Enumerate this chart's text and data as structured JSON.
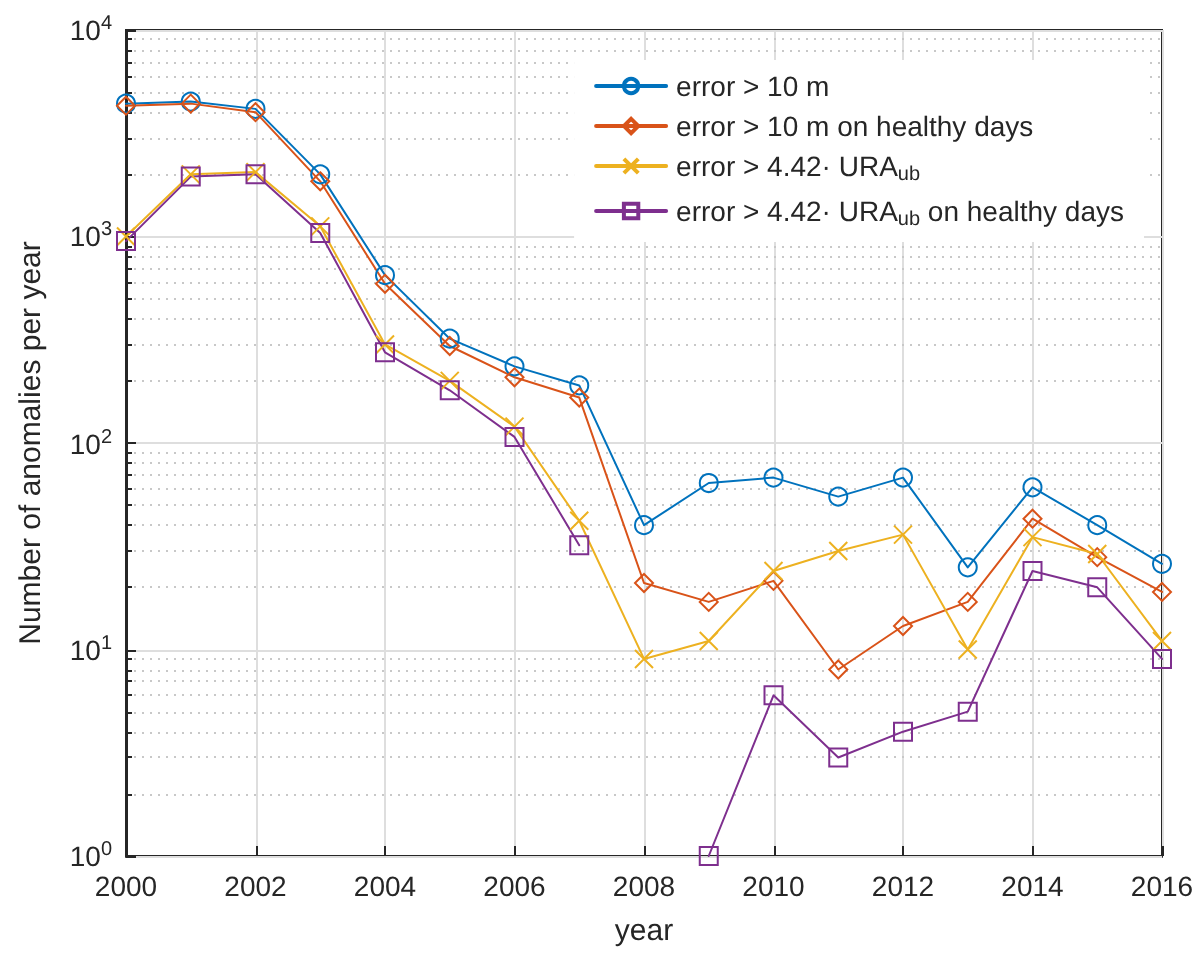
{
  "chart_data": {
    "type": "line",
    "xlabel": "year",
    "ylabel": "Number of anomalies per year",
    "x": [
      2000,
      2001,
      2002,
      2003,
      2004,
      2005,
      2006,
      2007,
      2008,
      2009,
      2010,
      2011,
      2012,
      2013,
      2014,
      2015,
      2016
    ],
    "xlim": [
      2000,
      2016
    ],
    "xticks": [
      2000,
      2002,
      2004,
      2006,
      2008,
      2010,
      2012,
      2014,
      2016
    ],
    "ylim": [
      1,
      10000
    ],
    "yticks": [
      {
        "value": 1,
        "label": "10$^{0}$"
      },
      {
        "value": 10,
        "label": "10$^{1}$"
      },
      {
        "value": 100,
        "label": "10$^{2}$"
      },
      {
        "value": 1000,
        "label": "10$^{3}$"
      },
      {
        "value": 10000,
        "label": "10$^{4}$"
      }
    ],
    "log": "y",
    "grid": true,
    "legend": "top right",
    "line_style": "solid",
    "series": [
      {
        "name": "error > 10 m",
        "color": "#0072bd",
        "marker": "circle",
        "values": [
          4400,
          4500,
          4150,
          2000,
          650,
          320,
          235,
          190,
          40,
          64,
          68,
          55,
          68,
          25,
          61,
          40,
          26
        ]
      },
      {
        "name": "error > 10 m on healthy days",
        "color": "#d95319",
        "marker": "diamond",
        "values": [
          4300,
          4400,
          4000,
          1850,
          590,
          295,
          208,
          166,
          21,
          17,
          21.5,
          8,
          13,
          17,
          43,
          28,
          19
        ]
      },
      {
        "name": "error > 4.42· URA$_{ub}$",
        "color": "#edb120",
        "marker": "cross",
        "values": [
          1000,
          2000,
          2050,
          1120,
          300,
          200,
          120,
          42,
          9,
          11,
          24,
          30,
          36,
          10,
          35,
          29,
          11
        ]
      },
      {
        "name": "error > 4.42· URA$_{ub}$ on healthy days",
        "color": "#7e2f8e",
        "marker": "square",
        "values": [
          950,
          1950,
          2000,
          1040,
          275,
          180,
          107,
          32,
          null,
          1,
          6,
          3,
          4,
          5,
          24,
          20,
          9
        ]
      }
    ]
  }
}
